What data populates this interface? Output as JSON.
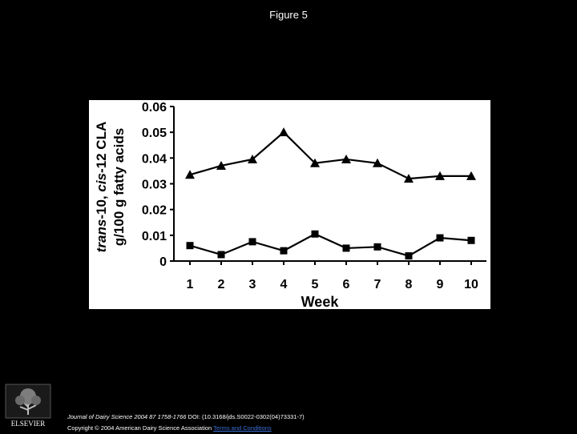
{
  "figure": {
    "title": "Figure 5"
  },
  "chart_data": {
    "type": "line",
    "xlabel": "Week",
    "ylabel_lines": [
      [
        "trans",
        "-10, ",
        "cis",
        "-12 CLA"
      ],
      [
        "g/100 g fatty acids"
      ]
    ],
    "x": [
      1,
      2,
      3,
      4,
      5,
      6,
      7,
      8,
      9,
      10
    ],
    "x_tick_labels": [
      "1",
      "2",
      "3",
      "4",
      "5",
      "6",
      "7",
      "8",
      "9",
      "10"
    ],
    "y_tick_labels": [
      "0",
      "0.01",
      "0.02",
      "0.03",
      "0.04",
      "0.05",
      "0.06"
    ],
    "ylim": [
      0,
      0.06
    ],
    "grid": false,
    "series": [
      {
        "marker": "triangle",
        "values": [
          0.0335,
          0.037,
          0.0395,
          0.05,
          0.038,
          0.0395,
          0.038,
          0.032,
          0.033,
          0.033
        ]
      },
      {
        "marker": "square",
        "values": [
          0.006,
          0.0025,
          0.0075,
          0.004,
          0.0105,
          0.005,
          0.0055,
          0.002,
          0.009,
          0.008
        ]
      }
    ]
  },
  "footer": {
    "journal": "Journal of Dairy Science 2004 87 1758-1766",
    "doi": "DOI: (10.3168/jds.S0022-0302(04)73331-7)",
    "copyright": "Copyright © 2004 American Dairy Science Association",
    "terms_link": "Terms and Conditions"
  },
  "logo": {
    "text": "ELSEVIER"
  }
}
